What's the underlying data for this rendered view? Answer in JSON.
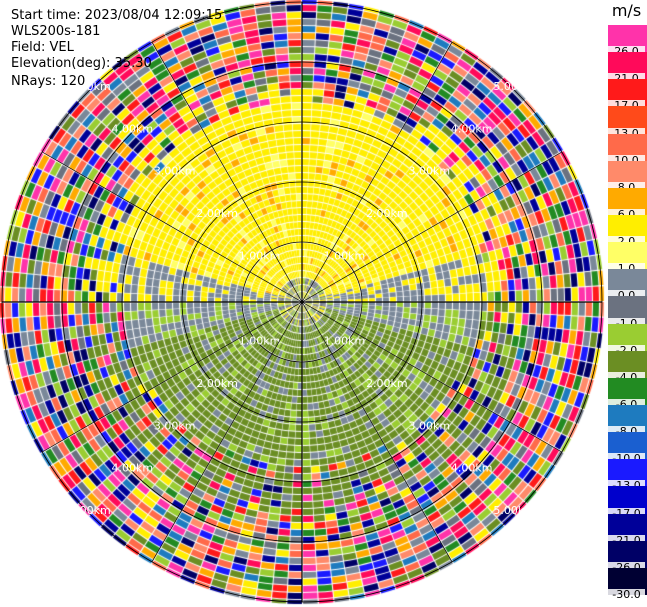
{
  "header": {
    "start_time": "Start time: 2023/08/04 12:09:15",
    "instrument": "WLS200s-181",
    "field": "Field: VEL",
    "elevation": "Elevation(deg): 35.30",
    "nrays": "NRays: 120"
  },
  "colorbar": {
    "unit": "m/s",
    "levels": [
      {
        "label": "26.0",
        "color": "#ff33aa"
      },
      {
        "label": "21.0",
        "color": "#ff0a5a"
      },
      {
        "label": "17.0",
        "color": "#ff1a1a"
      },
      {
        "label": "13.0",
        "color": "#ff4a1a"
      },
      {
        "label": "10.0",
        "color": "#ff6a4a"
      },
      {
        "label": "8.0",
        "color": "#ff8a6a"
      },
      {
        "label": "6.0",
        "color": "#ffaa00"
      },
      {
        "label": "2.0",
        "color": "#ffee00"
      },
      {
        "label": "1.0",
        "color": "#ffff66"
      },
      {
        "label": "0.0",
        "color": "#7a8899"
      },
      {
        "label": "-1.0",
        "color": "#6b7280"
      },
      {
        "label": "-2.0",
        "color": "#9acd32"
      },
      {
        "label": "-4.0",
        "color": "#6b8e23"
      },
      {
        "label": "-6.0",
        "color": "#228b22"
      },
      {
        "label": "-8.0",
        "color": "#1e7bbf"
      },
      {
        "label": "-10.0",
        "color": "#1a5fd0"
      },
      {
        "label": "-13.0",
        "color": "#1a1aff"
      },
      {
        "label": "-17.0",
        "color": "#0000cc"
      },
      {
        "label": "-21.0",
        "color": "#000099"
      },
      {
        "label": "-26.0",
        "color": "#000066"
      },
      {
        "label": "-30.0",
        "color": "#000033"
      }
    ]
  },
  "range_rings": {
    "labels": [
      "1.00km",
      "2.00km",
      "3.00km",
      "4.00km",
      "5.00km"
    ]
  }
}
